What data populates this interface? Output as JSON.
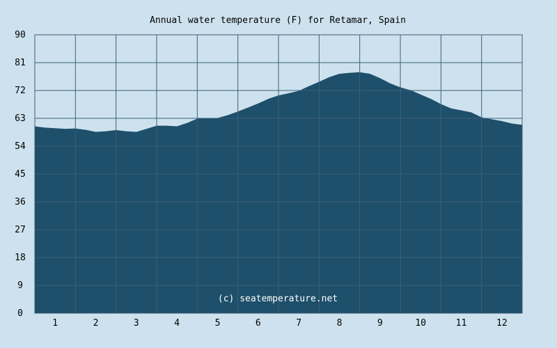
{
  "chart_data": {
    "type": "area",
    "title": "Annual water temperature (F) for Retamar, Spain",
    "watermark": "(c) seatemperature.net",
    "xlabel": "",
    "ylabel": "",
    "ylim": [
      0,
      90
    ],
    "xlim": [
      0.5,
      12.5
    ],
    "yticks": [
      "0",
      "9",
      "18",
      "27",
      "36",
      "45",
      "54",
      "63",
      "72",
      "81",
      "90"
    ],
    "xticks": [
      "1",
      "2",
      "3",
      "4",
      "5",
      "6",
      "7",
      "8",
      "9",
      "10",
      "11",
      "12"
    ],
    "grid": true,
    "legend": "none",
    "colors": {
      "background": "#cde2ee",
      "area_fill": "#1e4f6b",
      "grid_line": "#3d5f78",
      "axis_line": "#3d5f78"
    },
    "x": [
      0.5,
      0.75,
      1.0,
      1.25,
      1.5,
      1.75,
      2.0,
      2.25,
      2.5,
      2.75,
      3.0,
      3.25,
      3.5,
      3.75,
      4.0,
      4.25,
      4.5,
      4.75,
      5.0,
      5.25,
      5.5,
      5.75,
      6.0,
      6.25,
      6.5,
      6.75,
      7.0,
      7.25,
      7.5,
      7.75,
      8.0,
      8.25,
      8.5,
      8.75,
      9.0,
      9.25,
      9.5,
      9.75,
      10.0,
      10.25,
      10.5,
      10.75,
      11.0,
      11.25,
      11.5,
      11.75,
      12.0,
      12.25,
      12.5
    ],
    "values": [
      60.4,
      60.0,
      59.8,
      59.6,
      59.7,
      59.3,
      58.6,
      58.8,
      59.2,
      58.8,
      58.6,
      59.6,
      60.6,
      60.6,
      60.4,
      61.5,
      62.9,
      63.1,
      63.1,
      64.0,
      65.2,
      66.5,
      67.8,
      69.3,
      70.4,
      71.1,
      71.9,
      73.4,
      74.8,
      76.3,
      77.4,
      77.7,
      77.9,
      77.4,
      76.0,
      74.3,
      73.0,
      72.1,
      70.7,
      69.3,
      67.6,
      66.2,
      65.6,
      64.9,
      63.3,
      62.7,
      62.1,
      61.3,
      60.9
    ]
  }
}
